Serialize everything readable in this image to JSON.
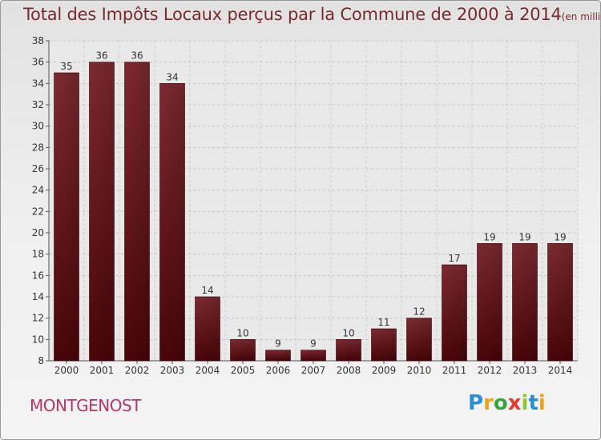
{
  "title": {
    "main": "Total des Impôts Locaux perçus par la Commune de 2000 à 2014",
    "unit": "(en milliers d'€)"
  },
  "commune": "MONTGENOST",
  "logo": [
    "P",
    "r",
    "o",
    "x",
    "i",
    "t",
    "i"
  ],
  "colors": {
    "bar": "#6e1419",
    "bar_dark": "#4a0508",
    "title": "#7a2a2e",
    "commune": "#b4366a"
  },
  "chart_data": {
    "type": "bar",
    "title": "Total des Impôts Locaux perçus par la Commune de 2000 à 2014",
    "xlabel": "",
    "ylabel": "",
    "categories": [
      "2000",
      "2001",
      "2002",
      "2003",
      "2004",
      "2005",
      "2006",
      "2007",
      "2008",
      "2009",
      "2010",
      "2011",
      "2012",
      "2013",
      "2014"
    ],
    "values": [
      35,
      36,
      36,
      34,
      14,
      10,
      9,
      9,
      10,
      11,
      12,
      17,
      19,
      19,
      19
    ],
    "ylim": [
      8,
      38
    ],
    "yticks": [
      8,
      10,
      12,
      14,
      16,
      18,
      20,
      22,
      24,
      26,
      28,
      30,
      32,
      34,
      36,
      38
    ],
    "grid": true,
    "data_labels": true
  }
}
